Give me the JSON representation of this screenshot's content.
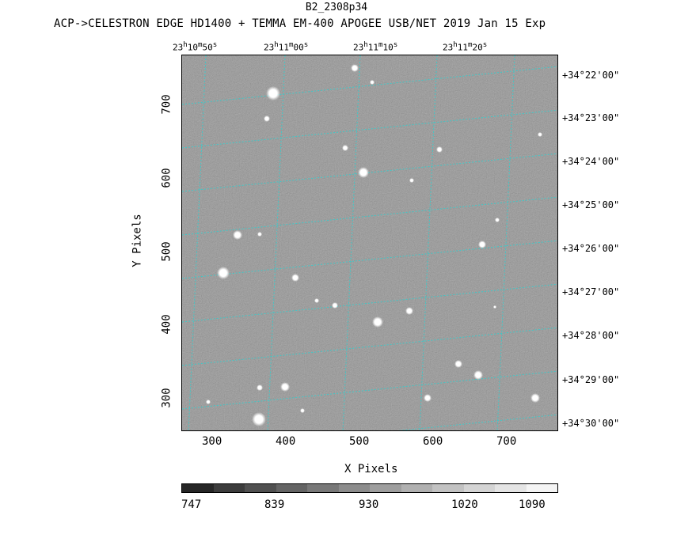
{
  "title": "B2_2308p34",
  "subtitle": "ACP->CELESTRON EDGE HD1400 + TEMMA EM-400 APOGEE USB/NET   2019 Jan 15    Exp",
  "ra_labels": [
    {
      "h": "23",
      "m": "10",
      "s": "50"
    },
    {
      "h": "23",
      "m": "11",
      "s": "00"
    },
    {
      "h": "23",
      "m": "11",
      "s": "10"
    },
    {
      "h": "23",
      "m": "11",
      "s": "20"
    }
  ],
  "dec_labels": [
    "+34°22'00\"",
    "+34°23'00\"",
    "+34°24'00\"",
    "+34°25'00\"",
    "+34°26'00\"",
    "+34°27'00\"",
    "+34°28'00\"",
    "+34°29'00\"",
    "+34°30'00\""
  ],
  "x_ticks": [
    "300",
    "400",
    "500",
    "600",
    "700"
  ],
  "y_ticks": [
    "700",
    "600",
    "500",
    "400",
    "300"
  ],
  "x_axis_label": "X Pixels",
  "y_axis_label": "Y Pixels",
  "colorbar_labels": [
    "747",
    "839",
    "930",
    "1020",
    "1090"
  ],
  "grid_color": "#40c8c8",
  "sky_color": "#8a8a8a"
}
